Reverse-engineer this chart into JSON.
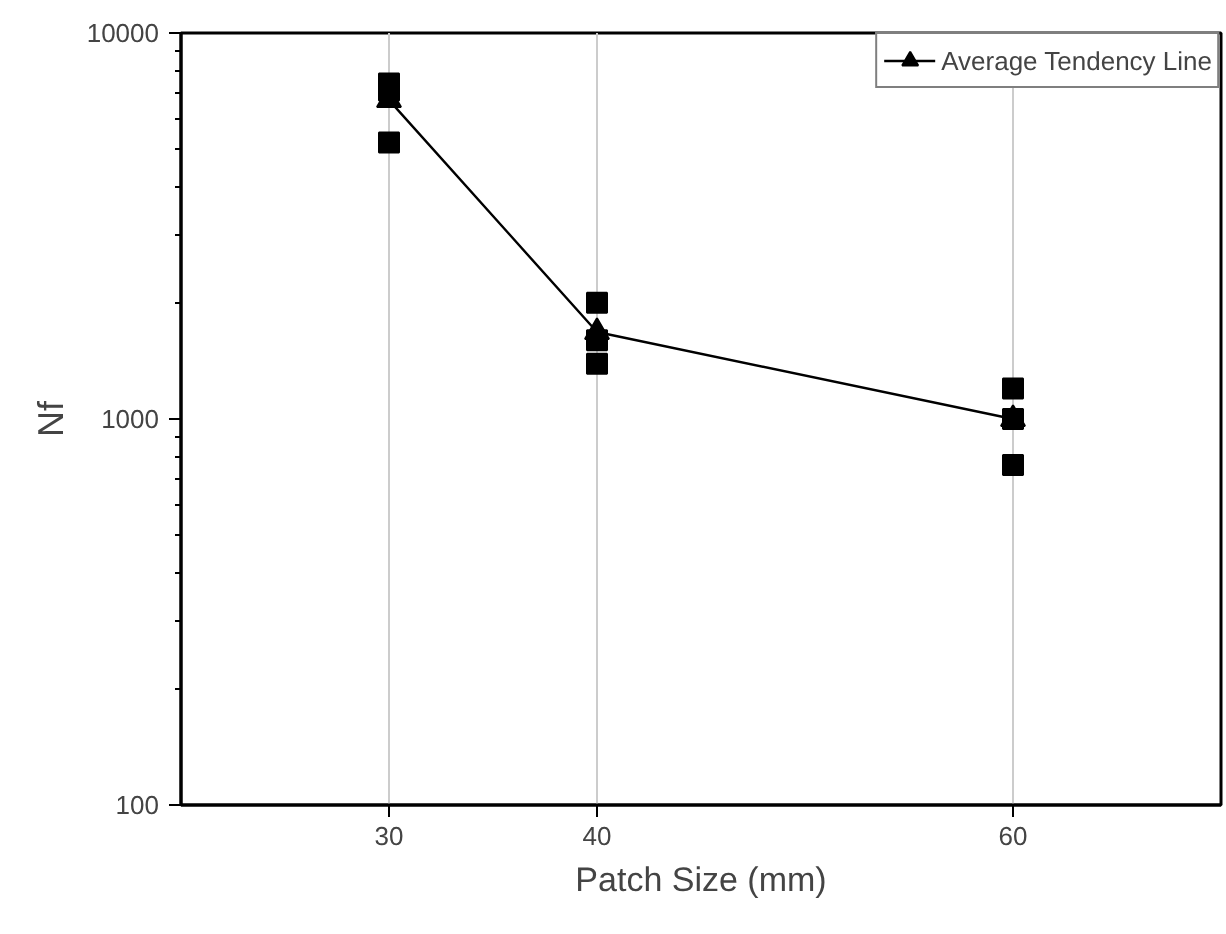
{
  "chart_data": {
    "type": "scatter",
    "xlabel": "Patch Size (mm)",
    "ylabel": "Nf",
    "log": "y",
    "xlim": [
      20,
      70
    ],
    "xticks": [
      30,
      40,
      60
    ],
    "ylim": [
      100,
      10000
    ],
    "yticks": [
      100,
      1000,
      10000
    ],
    "grid": "x",
    "legend": "top right",
    "series": [
      {
        "marker": "square",
        "color": "#000000",
        "x": [
          30,
          30,
          30,
          40,
          40,
          40,
          60,
          60,
          60
        ],
        "values": [
          7400,
          7100,
          5200,
          2000,
          1600,
          1390,
          1200,
          1000,
          760
        ]
      },
      {
        "type": "line",
        "name": "Average Tendency Line",
        "marker": "triangle",
        "color": "#000000",
        "x": [
          30,
          40,
          60
        ],
        "values": [
          6700,
          1680,
          1000
        ]
      }
    ]
  }
}
